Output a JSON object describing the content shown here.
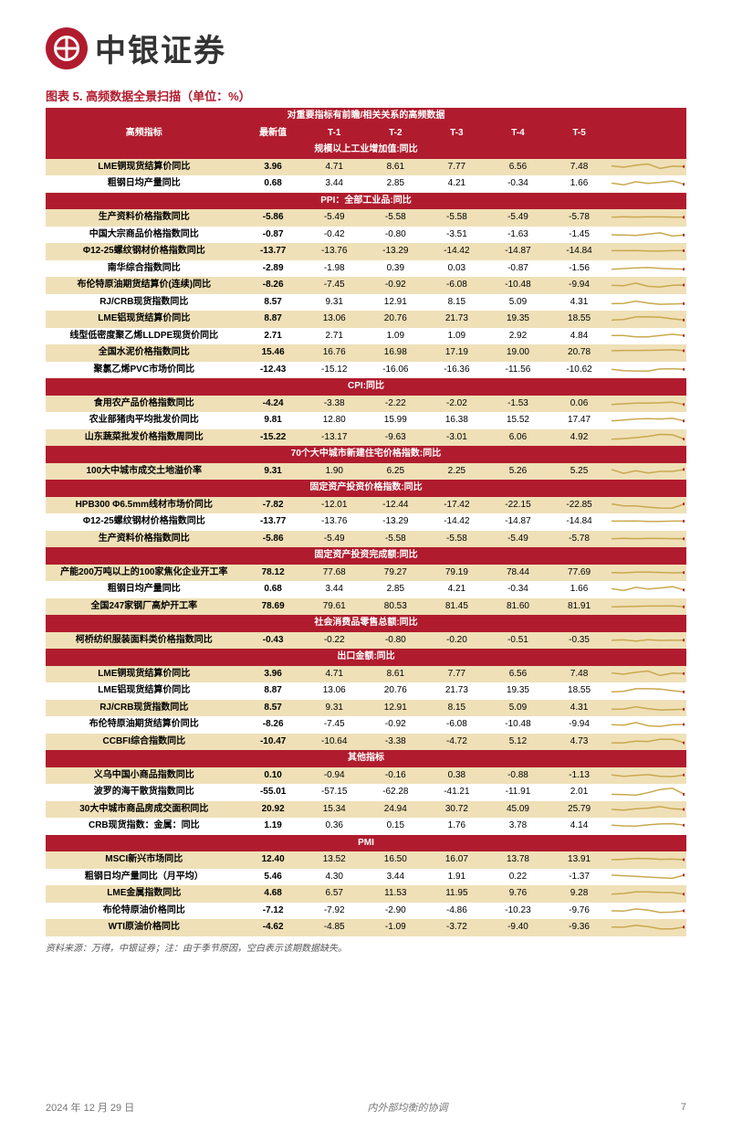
{
  "brand": "中银证券",
  "table_title": "图表 5. 高频数据全景扫描（单位：%）",
  "columns": [
    "高频指标",
    "最新值",
    "T-1",
    "T-2",
    "T-3",
    "T-4",
    "T-5"
  ],
  "top_section": "对重要指标有前瞻/相关关系的高频数据",
  "source_note": "资料来源：万得，中银证券；注：由于季节原因，空白表示该期数据缺失。",
  "footer": {
    "date": "2024 年 12 月 29 日",
    "title": "内外部均衡的协调",
    "page": "7"
  },
  "colors": {
    "brand_red": "#b01c2e",
    "beige": "#efe0b8",
    "white": "#ffffff",
    "spark_line": "#c9a94f",
    "text": "#000000",
    "footer_text": "#777777"
  },
  "groups": [
    {
      "name": "规模以上工业增加值:同比",
      "rows": [
        {
          "label": "LME铜现货结算价同比",
          "vals": [
            "3.96",
            "4.71",
            "8.61",
            "7.77",
            "6.56",
            "7.48"
          ],
          "spark": [
            40,
            50,
            35,
            25,
            60,
            42,
            45
          ]
        },
        {
          "label": "粗钢日均产量同比",
          "vals": [
            "0.68",
            "3.44",
            "2.85",
            "4.21",
            "-0.34",
            "1.66"
          ],
          "spark": [
            45,
            60,
            35,
            48,
            40,
            30,
            55
          ]
        }
      ]
    },
    {
      "name": "PPI：全部工业品:同比",
      "rows": [
        {
          "label": "生产资料价格指数同比",
          "vals": [
            "-5.86",
            "-5.49",
            "-5.58",
            "-5.58",
            "-5.49",
            "-5.78"
          ],
          "spark": [
            48,
            45,
            47,
            46,
            46,
            47,
            48
          ]
        },
        {
          "label": "中国大宗商品价格指数同比",
          "vals": [
            "-0.87",
            "-0.42",
            "-0.80",
            "-3.51",
            "-1.63",
            "-1.45"
          ],
          "spark": [
            50,
            52,
            55,
            45,
            35,
            60,
            52
          ]
        },
        {
          "label": "Φ12-25螺纹钢材价格指数同比",
          "vals": [
            "-13.77",
            "-13.76",
            "-13.29",
            "-14.42",
            "-14.87",
            "-14.84"
          ],
          "spark": [
            46,
            46,
            44,
            48,
            48,
            46,
            46
          ]
        },
        {
          "label": "南华综合指数同比",
          "vals": [
            "-2.89",
            "-1.98",
            "0.39",
            "0.03",
            "-0.87",
            "-1.56"
          ],
          "spark": [
            55,
            50,
            45,
            42,
            48,
            52,
            55
          ]
        },
        {
          "label": "布伦特原油期货结算价(连续)同比",
          "vals": [
            "-8.26",
            "-7.45",
            "-0.92",
            "-6.08",
            "-10.48",
            "-9.94"
          ],
          "spark": [
            52,
            55,
            35,
            60,
            65,
            52,
            50
          ]
        },
        {
          "label": "RJ/CRB现货指数同比",
          "vals": [
            "8.57",
            "9.31",
            "12.91",
            "8.15",
            "5.09",
            "4.31"
          ],
          "spark": [
            60,
            58,
            40,
            55,
            65,
            62,
            60
          ]
        },
        {
          "label": "LME铝现货结算价同比",
          "vals": [
            "8.87",
            "13.06",
            "20.76",
            "21.73",
            "19.35",
            "18.55"
          ],
          "spark": [
            60,
            55,
            35,
            35,
            38,
            50,
            60
          ]
        },
        {
          "label": "线型低密度聚乙烯LLDPE现货价同比",
          "vals": [
            "2.71",
            "2.71",
            "1.09",
            "1.09",
            "2.92",
            "4.84"
          ],
          "spark": [
            45,
            45,
            55,
            55,
            44,
            35,
            45
          ]
        },
        {
          "label": "全国水泥价格指数同比",
          "vals": [
            "15.46",
            "16.76",
            "16.98",
            "17.19",
            "19.00",
            "20.78"
          ],
          "spark": [
            35,
            33,
            33,
            32,
            30,
            28,
            35
          ]
        },
        {
          "label": "聚氯乙烯PVC市场价同比",
          "vals": [
            "-12.43",
            "-15.12",
            "-16.06",
            "-16.36",
            "-11.56",
            "-10.62"
          ],
          "spark": [
            45,
            55,
            58,
            58,
            42,
            40,
            45
          ]
        }
      ]
    },
    {
      "name": "CPI:同比",
      "rows": [
        {
          "label": "食用农产品价格指数同比",
          "vals": [
            "-4.24",
            "-3.38",
            "-2.22",
            "-2.02",
            "-1.53",
            "0.06"
          ],
          "spark": [
            55,
            50,
            45,
            44,
            42,
            38,
            55
          ]
        },
        {
          "label": "农业部猪肉平均批发价同比",
          "vals": [
            "9.81",
            "12.80",
            "15.99",
            "16.38",
            "15.52",
            "17.47"
          ],
          "spark": [
            55,
            48,
            40,
            38,
            40,
            35,
            55
          ]
        },
        {
          "label": "山东蔬菜批发价格指数周同比",
          "vals": [
            "-15.22",
            "-13.17",
            "-9.63",
            "-3.01",
            "6.06",
            "4.92"
          ],
          "spark": [
            62,
            58,
            50,
            40,
            25,
            28,
            62
          ]
        }
      ]
    },
    {
      "name": "70个大中城市新建住宅价格指数:同比",
      "rows": [
        {
          "label": "100大中城市成交土地溢价率",
          "vals": [
            "9.31",
            "1.90",
            "6.25",
            "2.25",
            "5.26",
            "5.25"
          ],
          "spark": [
            35,
            65,
            45,
            62,
            50,
            50,
            35
          ]
        }
      ]
    },
    {
      "name": "固定资产投资价格指数:同比",
      "rows": [
        {
          "label": "HPB300 Φ6.5mm线材市场价同比",
          "vals": [
            "-7.82",
            "-12.01",
            "-12.44",
            "-17.42",
            "-22.15",
            "-22.85"
          ],
          "spark": [
            40,
            55,
            56,
            65,
            72,
            73,
            40
          ]
        },
        {
          "label": "Φ12-25螺纹钢材价格指数同比",
          "vals": [
            "-13.77",
            "-13.76",
            "-13.29",
            "-14.42",
            "-14.87",
            "-14.84"
          ],
          "spark": [
            46,
            46,
            44,
            48,
            48,
            46,
            46
          ]
        },
        {
          "label": "生产资料价格指数同比",
          "vals": [
            "-5.86",
            "-5.49",
            "-5.58",
            "-5.58",
            "-5.49",
            "-5.78"
          ],
          "spark": [
            48,
            45,
            47,
            46,
            46,
            47,
            48
          ]
        }
      ]
    },
    {
      "name": "固定资产投资完成额:同比",
      "rows": [
        {
          "label": "产能200万吨以上的100家焦化企业开工率",
          "vals": [
            "78.12",
            "77.68",
            "79.27",
            "79.19",
            "78.44",
            "77.69"
          ],
          "spark": [
            48,
            50,
            44,
            44,
            47,
            50,
            48
          ]
        },
        {
          "label": "粗钢日均产量同比",
          "vals": [
            "0.68",
            "3.44",
            "2.85",
            "4.21",
            "-0.34",
            "1.66"
          ],
          "spark": [
            45,
            60,
            35,
            48,
            40,
            30,
            55
          ]
        },
        {
          "label": "全国247家钢厂高炉开工率",
          "vals": [
            "78.69",
            "79.61",
            "80.53",
            "81.45",
            "81.60",
            "81.91"
          ],
          "spark": [
            52,
            50,
            48,
            46,
            46,
            45,
            52
          ]
        }
      ]
    },
    {
      "name": "社会消费品零售总额:同比",
      "rows": [
        {
          "label": "柯桥纺织服装面料类价格指数同比",
          "vals": [
            "-0.43",
            "-0.22",
            "-0.80",
            "-0.20",
            "-0.51",
            "-0.35"
          ],
          "spark": [
            48,
            46,
            55,
            45,
            50,
            48,
            48
          ]
        }
      ]
    },
    {
      "name": "出口金额:同比",
      "rows": [
        {
          "label": "LME铜现货结算价同比",
          "vals": [
            "3.96",
            "4.71",
            "8.61",
            "7.77",
            "6.56",
            "7.48"
          ],
          "spark": [
            40,
            50,
            35,
            25,
            60,
            42,
            45
          ]
        },
        {
          "label": "LME铝现货结算价同比",
          "vals": [
            "8.87",
            "13.06",
            "20.76",
            "21.73",
            "19.35",
            "18.55"
          ],
          "spark": [
            60,
            55,
            35,
            35,
            38,
            50,
            60
          ]
        },
        {
          "label": "RJ/CRB现货指数同比",
          "vals": [
            "8.57",
            "9.31",
            "12.91",
            "8.15",
            "5.09",
            "4.31"
          ],
          "spark": [
            60,
            58,
            40,
            55,
            65,
            62,
            60
          ]
        },
        {
          "label": "布伦特原油期货结算价同比",
          "vals": [
            "-8.26",
            "-7.45",
            "-0.92",
            "-6.08",
            "-10.48",
            "-9.94"
          ],
          "spark": [
            52,
            55,
            35,
            60,
            65,
            52,
            50
          ]
        },
        {
          "label": "CCBFI综合指数同比",
          "vals": [
            "-10.47",
            "-10.64",
            "-3.38",
            "-4.72",
            "5.12",
            "4.73"
          ],
          "spark": [
            58,
            58,
            45,
            47,
            30,
            31,
            58
          ]
        }
      ]
    },
    {
      "name": "其他指标",
      "rows": [
        {
          "label": "义乌中国小商品指数同比",
          "vals": [
            "0.10",
            "-0.94",
            "-0.16",
            "0.38",
            "-0.88",
            "-1.13"
          ],
          "spark": [
            45,
            55,
            48,
            42,
            55,
            58,
            45
          ]
        },
        {
          "label": "波罗的海干散货指数同比",
          "vals": [
            "-55.01",
            "-57.15",
            "-62.28",
            "-41.21",
            "-11.91",
            "2.01"
          ],
          "spark": [
            68,
            70,
            74,
            55,
            30,
            20,
            68
          ]
        },
        {
          "label": "30大中城市商品房成交面积同比",
          "vals": [
            "20.92",
            "15.34",
            "24.94",
            "30.72",
            "45.09",
            "25.79"
          ],
          "spark": [
            50,
            55,
            45,
            40,
            28,
            45,
            50
          ]
        },
        {
          "label": "CRB现货指数：金属：同比",
          "vals": [
            "1.19",
            "0.36",
            "0.15",
            "1.76",
            "3.78",
            "4.14"
          ],
          "spark": [
            45,
            50,
            52,
            42,
            35,
            33,
            45
          ]
        }
      ]
    },
    {
      "name": "PMI",
      "rows": [
        {
          "label": "MSCI新兴市场同比",
          "vals": [
            "12.40",
            "13.52",
            "16.50",
            "16.07",
            "13.78",
            "13.91"
          ],
          "spark": [
            50,
            47,
            40,
            41,
            47,
            46,
            50
          ]
        },
        {
          "label": "粗钢日均产量同比（月平均）",
          "vals": [
            "5.46",
            "4.30",
            "3.44",
            "1.91",
            "0.22",
            "-1.37"
          ],
          "spark": [
            35,
            40,
            44,
            50,
            55,
            60,
            35
          ]
        },
        {
          "label": "LME金属指数同比",
          "vals": [
            "4.68",
            "6.57",
            "11.53",
            "11.95",
            "9.76",
            "9.28"
          ],
          "spark": [
            55,
            50,
            38,
            37,
            42,
            43,
            55
          ]
        },
        {
          "label": "布伦特原油价格同比",
          "vals": [
            "-7.12",
            "-7.92",
            "-2.90",
            "-4.86",
            "-10.23",
            "-9.76"
          ],
          "spark": [
            50,
            52,
            35,
            45,
            62,
            60,
            50
          ]
        },
        {
          "label": "WTI原油价格同比",
          "vals": [
            "-4.62",
            "-4.85",
            "-1.09",
            "-3.72",
            "-9.40",
            "-9.36"
          ],
          "spark": [
            48,
            49,
            35,
            45,
            62,
            62,
            48
          ]
        }
      ]
    }
  ]
}
